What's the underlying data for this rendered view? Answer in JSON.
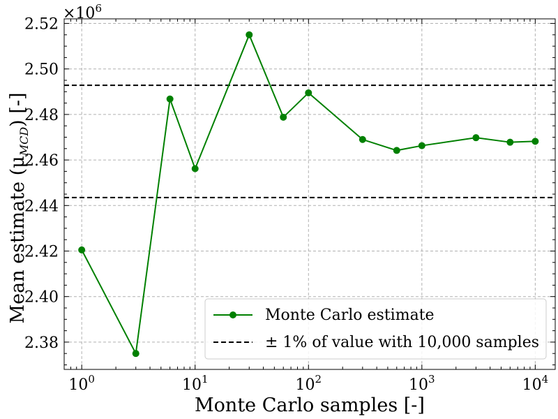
{
  "chart_data": {
    "type": "line",
    "xscale": "log",
    "xlim": [
      0.7,
      15000
    ],
    "ylim": [
      2368000,
      2522000
    ],
    "grid": true,
    "legend_position": "lower-right",
    "xlabel": "Monte Carlo samples [-]",
    "ylabel": "Mean estimate (μ",
    "ylabel_subscript": "MCD",
    "ylabel_suffix": ") [-]",
    "y_offset_label": "×10",
    "y_offset_exponent": "6",
    "x_ticks": [
      {
        "value": 1,
        "base": "10",
        "exp": "0"
      },
      {
        "value": 10,
        "base": "10",
        "exp": "1"
      },
      {
        "value": 100,
        "base": "10",
        "exp": "2"
      },
      {
        "value": 1000,
        "base": "10",
        "exp": "3"
      },
      {
        "value": 10000,
        "base": "10",
        "exp": "4"
      }
    ],
    "y_ticks": [
      {
        "value": 2380000,
        "label": "2.38"
      },
      {
        "value": 2400000,
        "label": "2.40"
      },
      {
        "value": 2420000,
        "label": "2.42"
      },
      {
        "value": 2440000,
        "label": "2.44"
      },
      {
        "value": 2460000,
        "label": "2.46"
      },
      {
        "value": 2480000,
        "label": "2.48"
      },
      {
        "value": 2500000,
        "label": "2.50"
      },
      {
        "value": 2520000,
        "label": "2.52"
      }
    ],
    "series": [
      {
        "name": "Monte Carlo estimate",
        "color": "#008000",
        "marker": "circle",
        "x": [
          1,
          3,
          6,
          10,
          30,
          60,
          100,
          300,
          600,
          1000,
          3000,
          6000,
          10000
        ],
        "y": [
          2420500,
          2375000,
          2486800,
          2456200,
          2515000,
          2478800,
          2489500,
          2469000,
          2464200,
          2466300,
          2469800,
          2467800,
          2468200
        ]
      },
      {
        "name": "± 1% of value with 10,000 samples",
        "color": "#000000",
        "style": "dashed",
        "hlines": [
          2443500,
          2492800
        ]
      }
    ]
  }
}
